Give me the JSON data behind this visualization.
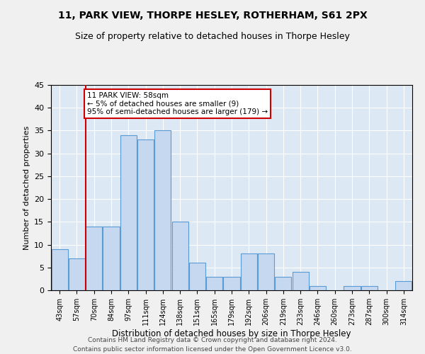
{
  "title": "11, PARK VIEW, THORPE HESLEY, ROTHERHAM, S61 2PX",
  "subtitle": "Size of property relative to detached houses in Thorpe Hesley",
  "xlabel": "Distribution of detached houses by size in Thorpe Hesley",
  "ylabel": "Number of detached properties",
  "categories": [
    "43sqm",
    "57sqm",
    "70sqm",
    "84sqm",
    "97sqm",
    "111sqm",
    "124sqm",
    "138sqm",
    "151sqm",
    "165sqm",
    "179sqm",
    "192sqm",
    "206sqm",
    "219sqm",
    "233sqm",
    "246sqm",
    "260sqm",
    "273sqm",
    "287sqm",
    "300sqm",
    "314sqm"
  ],
  "values": [
    9,
    7,
    14,
    14,
    34,
    33,
    35,
    15,
    6,
    3,
    3,
    8,
    8,
    3,
    4,
    1,
    0,
    1,
    1,
    0,
    2
  ],
  "bar_color": "#c5d8f0",
  "bar_edge_color": "#5b9bd5",
  "annotation_box_color": "#ffffff",
  "annotation_box_edge": "#cc0000",
  "vline_color": "#cc0000",
  "ylim": [
    0,
    45
  ],
  "yticks": [
    0,
    5,
    10,
    15,
    20,
    25,
    30,
    35,
    40,
    45
  ],
  "bg_color": "#dde8f5",
  "grid_color": "#ffffff",
  "fig_bg_color": "#f0f0f0",
  "footer1": "Contains HM Land Registry data © Crown copyright and database right 2024.",
  "footer2": "Contains public sector information licensed under the Open Government Licence v3.0.",
  "title_fontsize": 10,
  "subtitle_fontsize": 9,
  "annotation_label": "11 PARK VIEW: 58sqm",
  "annotation_line1": "← 5% of detached houses are smaller (9)",
  "annotation_line2": "95% of semi-detached houses are larger (179) →"
}
